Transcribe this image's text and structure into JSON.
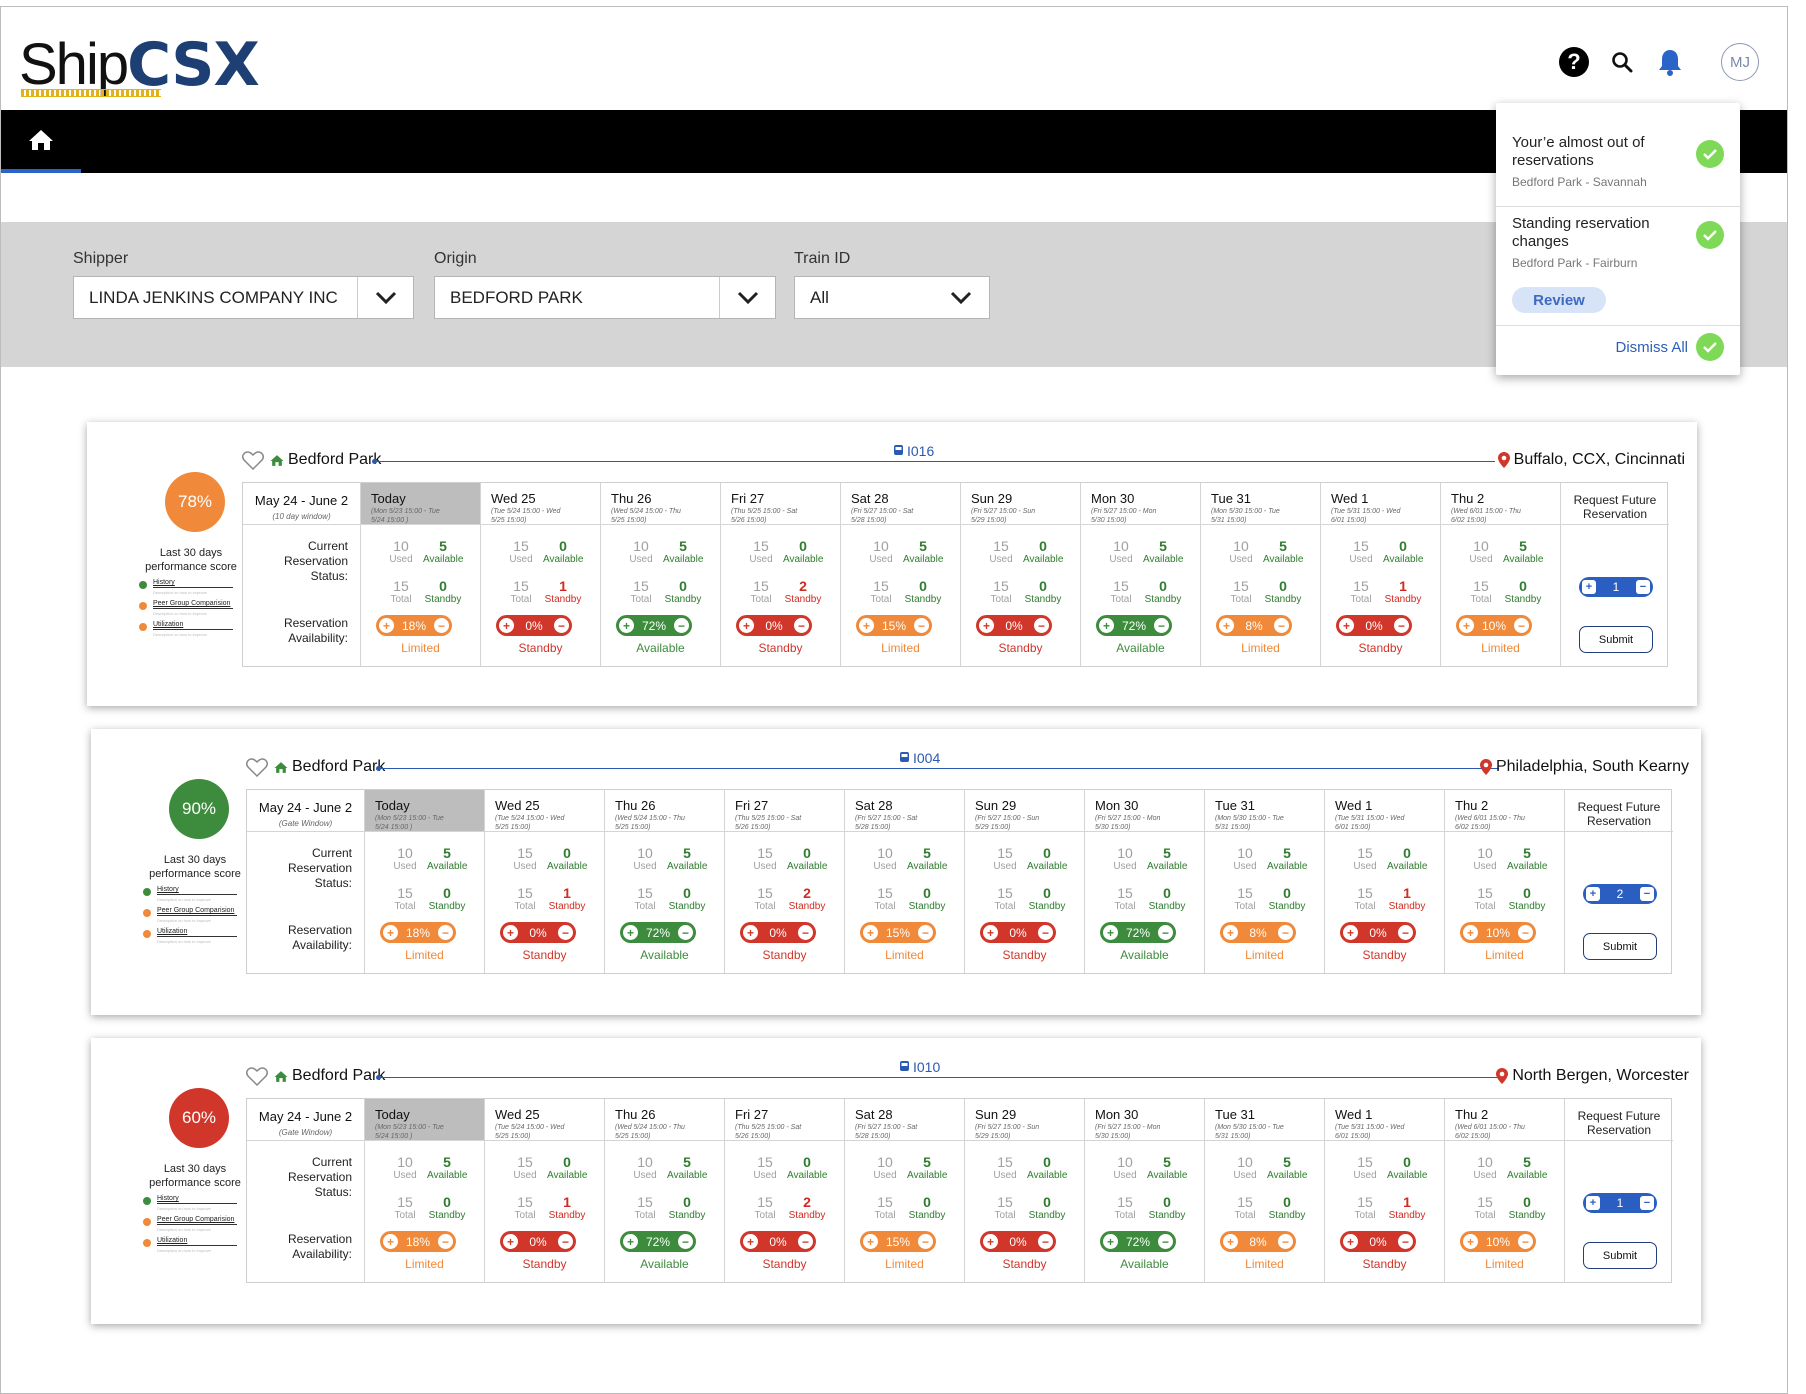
{
  "logo": {
    "ship": "Ship",
    "csx": "CSX"
  },
  "header": {
    "avatar_initials": "MJ"
  },
  "filters": {
    "shipper": {
      "label": "Shipper",
      "value": "LINDA JENKINS COMPANY INC"
    },
    "origin": {
      "label": "Origin",
      "value": "BEDFORD PARK"
    },
    "train": {
      "label": "Train ID",
      "value": "All"
    }
  },
  "notifications": {
    "items": [
      {
        "title": "Your’e almost out of reservations",
        "subtitle": "Bedford Park - Savannah"
      },
      {
        "title": "Standing reservation changes",
        "subtitle": "Bedford Park - Fairburn"
      }
    ],
    "review_label": "Review",
    "dismiss_label": "Dismiss All"
  },
  "colors": {
    "orange": "#f0893a",
    "red": "#d0362a",
    "green": "#3d8c3d",
    "brand": "#1d3f73"
  },
  "days": [
    {
      "name": "Today",
      "range": "(Mon 5/23 15:00 - Tue 5/24 15:00 )"
    },
    {
      "name": "Wed 25",
      "range": "(Tue 5/24 15:00 - Wed 5/25 15:00)"
    },
    {
      "name": "Thu 26",
      "range": "(Wed 5/24 15:00 - Thu 5/25 15:00)"
    },
    {
      "name": "Fri 27",
      "range": "(Thu 5/25 15:00 - Sat 5/26 15:00)"
    },
    {
      "name": "Sat 28",
      "range": "(Fri 5/27 15:00 - Sat 5/28 15:00)"
    },
    {
      "name": "Sun 29",
      "range": "(Fri 5/27 15:00 - Sun 5/29 15:00)"
    },
    {
      "name": "Mon 30",
      "range": "(Fri 5/27 15:00 - Mon 5/30 15:00)"
    },
    {
      "name": "Tue 31",
      "range": "(Mon 5/30 15:00 - Tue 5/31 15:00)"
    },
    {
      "name": "Wed 1",
      "range": "(Tue 5/31 15:00 - Wed 6/01 15:00)"
    },
    {
      "name": "Thu 2",
      "range": "(Wed 6/01 15:00 - Thu 6/02 15:00)"
    }
  ],
  "cells": [
    {
      "used": "10",
      "available": "5",
      "total": "15",
      "standby": "0",
      "pct": "18%",
      "status": "Limited",
      "color": "o"
    },
    {
      "used": "15",
      "available": "0",
      "total": "15",
      "standby": "1",
      "pct": "0%",
      "status": "Standby",
      "color": "r"
    },
    {
      "used": "10",
      "available": "5",
      "total": "15",
      "standby": "0",
      "pct": "72%",
      "status": "Available",
      "color": "g"
    },
    {
      "used": "15",
      "available": "0",
      "total": "15",
      "standby": "2",
      "pct": "0%",
      "status": "Standby",
      "color": "r"
    },
    {
      "used": "10",
      "available": "5",
      "total": "15",
      "standby": "0",
      "pct": "15%",
      "status": "Limited",
      "color": "o"
    },
    {
      "used": "15",
      "available": "0",
      "total": "15",
      "standby": "0",
      "pct": "0%",
      "status": "Standby",
      "color": "r"
    },
    {
      "used": "10",
      "available": "5",
      "total": "15",
      "standby": "0",
      "pct": "72%",
      "status": "Available",
      "color": "g"
    },
    {
      "used": "10",
      "available": "5",
      "total": "15",
      "standby": "0",
      "pct": "8%",
      "status": "Limited",
      "color": "o"
    },
    {
      "used": "15",
      "available": "0",
      "total": "15",
      "standby": "1",
      "pct": "0%",
      "status": "Standby",
      "color": "r"
    },
    {
      "used": "10",
      "available": "5",
      "total": "15",
      "standby": "0",
      "pct": "10%",
      "status": "Limited",
      "color": "o"
    }
  ],
  "labels": {
    "used": "Used",
    "available": "Available",
    "total": "Total",
    "standby": "Standby",
    "current_status": "Current Reservation Status:",
    "availability": "Reservation Availability:",
    "request_future": "Request Future Reservation",
    "submit": "Submit",
    "last30": "Last 30 days performance  score",
    "legend": [
      "History",
      "Peer Group Comparision",
      "Utilization"
    ],
    "legend_desc": "Description on how to improve"
  },
  "cards": [
    {
      "score": "78%",
      "score_color": "#f0893a",
      "origin": "Bedford Park",
      "train": "I016",
      "dest": "Buffalo, CCX, Cincinnati",
      "window_title": "May 24 - June 2",
      "window_sub": "(10 day window)",
      "qty": "1"
    },
    {
      "score": "90%",
      "score_color": "#3d8c3d",
      "origin": "Bedford Park",
      "train": "I004",
      "dest": "Philadelphia, South Kearny",
      "window_title": "May 24 - June 2",
      "window_sub": "(Gate Window)",
      "qty": "2"
    },
    {
      "score": "60%",
      "score_color": "#d0362a",
      "origin": "Bedford Park",
      "train": "I010",
      "dest": "North Bergen, Worcester",
      "window_title": "May 24 - June 2",
      "window_sub": "(Gate Window)",
      "qty": "1"
    }
  ]
}
